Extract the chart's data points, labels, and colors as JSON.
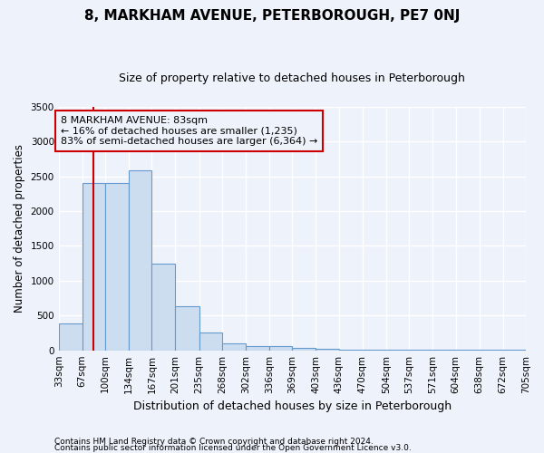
{
  "title": "8, MARKHAM AVENUE, PETERBOROUGH, PE7 0NJ",
  "subtitle": "Size of property relative to detached houses in Peterborough",
  "xlabel": "Distribution of detached houses by size in Peterborough",
  "ylabel": "Number of detached properties",
  "footnote1": "Contains HM Land Registry data © Crown copyright and database right 2024.",
  "footnote2": "Contains public sector information licensed under the Open Government Licence v3.0.",
  "annotation_line1": "8 MARKHAM AVENUE: 83sqm",
  "annotation_line2": "← 16% of detached houses are smaller (1,235)",
  "annotation_line3": "83% of semi-detached houses are larger (6,364) →",
  "property_size": 83,
  "bin_edges": [
    33,
    67,
    100,
    134,
    167,
    201,
    235,
    268,
    302,
    336,
    369,
    403,
    436,
    470,
    504,
    537,
    571,
    604,
    638,
    672,
    705
  ],
  "bar_heights": [
    380,
    2400,
    2400,
    2590,
    1240,
    630,
    255,
    100,
    65,
    60,
    35,
    20,
    12,
    10,
    5,
    5,
    5,
    5,
    5,
    5
  ],
  "bar_color": "#ccddf0",
  "bar_edge_color": "#6699cc",
  "red_line_color": "#cc0000",
  "annotation_box_color": "#cc0000",
  "background_color": "#eef2fb",
  "grid_color": "#ffffff",
  "ylim": [
    0,
    3500
  ],
  "yticks": [
    0,
    500,
    1000,
    1500,
    2000,
    2500,
    3000,
    3500
  ],
  "title_fontsize": 11,
  "subtitle_fontsize": 9,
  "ylabel_fontsize": 8.5,
  "xlabel_fontsize": 9,
  "tick_fontsize": 7.5,
  "annotation_fontsize": 8,
  "footnote_fontsize": 6.5
}
